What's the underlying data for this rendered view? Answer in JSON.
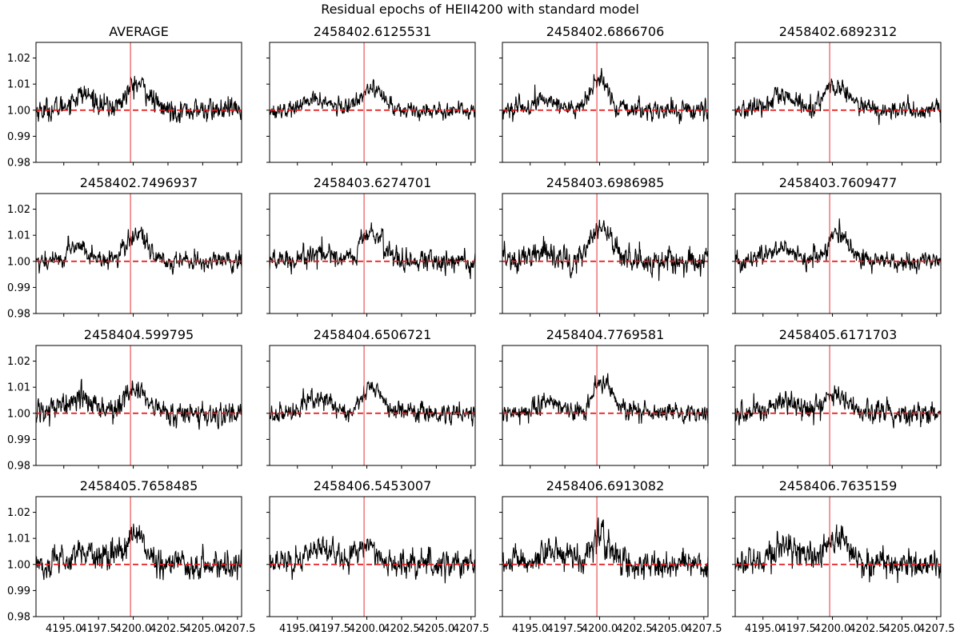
{
  "figure": {
    "suptitle": "Residual epochs of HEII4200 with standard model"
  },
  "chart_data": {
    "type": "line",
    "layout": "4x4 grid of panels, shared x and y axes",
    "xlim": [
      4193.0,
      4207.8
    ],
    "ylim": [
      0.98,
      1.026
    ],
    "xticks": [
      4195.0,
      4197.5,
      4200.0,
      4202.5,
      4205.0,
      4207.5
    ],
    "xtick_labels": [
      "4195.0",
      "4197.5",
      "4200.0",
      "4202.5",
      "4205.0",
      "4207.5"
    ],
    "yticks": [
      0.98,
      0.99,
      1.0,
      1.01,
      1.02
    ],
    "ytick_labels": [
      "0.98",
      "0.99",
      "1.00",
      "1.01",
      "1.02"
    ],
    "reference_line": {
      "y": 1.0,
      "style": "dashed",
      "color": "#e41a1c"
    },
    "marker_line": {
      "x": 4199.8,
      "color": "#e41a1c"
    },
    "line_color": "#000000",
    "panels": [
      {
        "title": "AVERAGE",
        "components": [
          {
            "c": 4196.4,
            "a": 0.006,
            "w": 0.9
          },
          {
            "c": 4200.3,
            "a": 0.01,
            "w": 0.8
          }
        ],
        "noise": 0.0035
      },
      {
        "title": "2458402.6125531",
        "components": [
          {
            "c": 4196.4,
            "a": 0.004,
            "w": 0.9
          },
          {
            "c": 4200.3,
            "a": 0.009,
            "w": 0.8
          }
        ],
        "noise": 0.0025
      },
      {
        "title": "2458402.6866706",
        "components": [
          {
            "c": 4196.2,
            "a": 0.004,
            "w": 0.9
          },
          {
            "c": 4200.0,
            "a": 0.012,
            "w": 0.6
          }
        ],
        "noise": 0.003
      },
      {
        "title": "2458402.6892312",
        "components": [
          {
            "c": 4196.4,
            "a": 0.005,
            "w": 0.9
          },
          {
            "c": 4200.3,
            "a": 0.009,
            "w": 0.9
          }
        ],
        "noise": 0.003
      },
      {
        "title": "2458402.7496937",
        "components": [
          {
            "c": 4196.0,
            "a": 0.006,
            "w": 0.7
          },
          {
            "c": 4200.2,
            "a": 0.01,
            "w": 0.8
          }
        ],
        "noise": 0.003
      },
      {
        "title": "2458403.6274701",
        "components": [
          {
            "c": 4196.3,
            "a": 0.004,
            "w": 0.9
          },
          {
            "c": 4200.4,
            "a": 0.011,
            "w": 0.8
          }
        ],
        "noise": 0.0035
      },
      {
        "title": "2458403.6986985",
        "components": [
          {
            "c": 4196.3,
            "a": 0.004,
            "w": 0.9
          },
          {
            "c": 4200.2,
            "a": 0.012,
            "w": 0.8
          }
        ],
        "noise": 0.004
      },
      {
        "title": "2458403.7609477",
        "components": [
          {
            "c": 4196.4,
            "a": 0.005,
            "w": 0.9
          },
          {
            "c": 4200.4,
            "a": 0.011,
            "w": 0.7
          }
        ],
        "noise": 0.003
      },
      {
        "title": "2458404.599795",
        "components": [
          {
            "c": 4196.3,
            "a": 0.006,
            "w": 1.0
          },
          {
            "c": 4200.2,
            "a": 0.01,
            "w": 0.8
          }
        ],
        "noise": 0.0035
      },
      {
        "title": "2458404.6506721",
        "components": [
          {
            "c": 4196.4,
            "a": 0.006,
            "w": 0.9
          },
          {
            "c": 4200.4,
            "a": 0.01,
            "w": 0.7
          }
        ],
        "noise": 0.003
      },
      {
        "title": "2458404.7769581",
        "components": [
          {
            "c": 4196.4,
            "a": 0.005,
            "w": 0.8
          },
          {
            "c": 4200.2,
            "a": 0.012,
            "w": 0.7
          }
        ],
        "noise": 0.003
      },
      {
        "title": "2458405.6171703",
        "components": [
          {
            "c": 4196.6,
            "a": 0.005,
            "w": 1.0
          },
          {
            "c": 4200.2,
            "a": 0.008,
            "w": 0.8
          }
        ],
        "noise": 0.0035
      },
      {
        "title": "2458405.7658485",
        "components": [
          {
            "c": 4196.4,
            "a": 0.004,
            "w": 1.0
          },
          {
            "c": 4200.0,
            "a": 0.01,
            "w": 0.9
          }
        ],
        "noise": 0.0045
      },
      {
        "title": "2458406.5453007",
        "components": [
          {
            "c": 4196.5,
            "a": 0.006,
            "w": 0.9
          },
          {
            "c": 4200.0,
            "a": 0.008,
            "w": 0.7
          }
        ],
        "noise": 0.004
      },
      {
        "title": "2458406.6913082",
        "components": [
          {
            "c": 4196.4,
            "a": 0.005,
            "w": 1.0
          },
          {
            "c": 4200.0,
            "a": 0.012,
            "w": 0.6
          }
        ],
        "noise": 0.0045
      },
      {
        "title": "2458406.7635159",
        "components": [
          {
            "c": 4197.0,
            "a": 0.006,
            "w": 1.2
          },
          {
            "c": 4200.4,
            "a": 0.01,
            "w": 0.8
          }
        ],
        "noise": 0.0045
      }
    ]
  }
}
